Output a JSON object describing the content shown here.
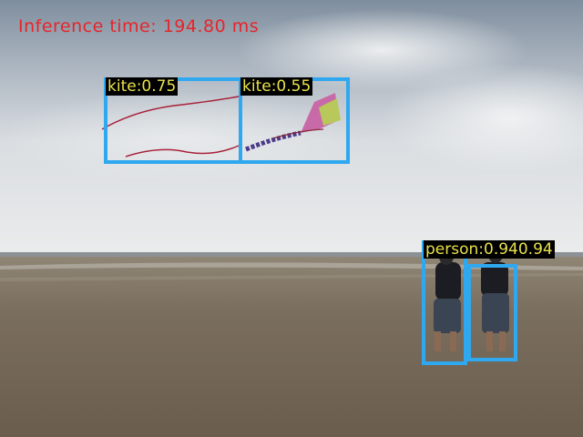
{
  "hud": {
    "inference_text": "Inference time: 194.80 ms"
  },
  "detections": [
    {
      "label": "kite:0.75"
    },
    {
      "label": "kite:0.55"
    },
    {
      "label": "person:0.94"
    },
    {
      "label": "0.94"
    }
  ],
  "colors": {
    "box": "#2fa8f0",
    "label_text": "#e8e14a",
    "label_bg": "#000000",
    "hud_text": "#e8242a"
  }
}
